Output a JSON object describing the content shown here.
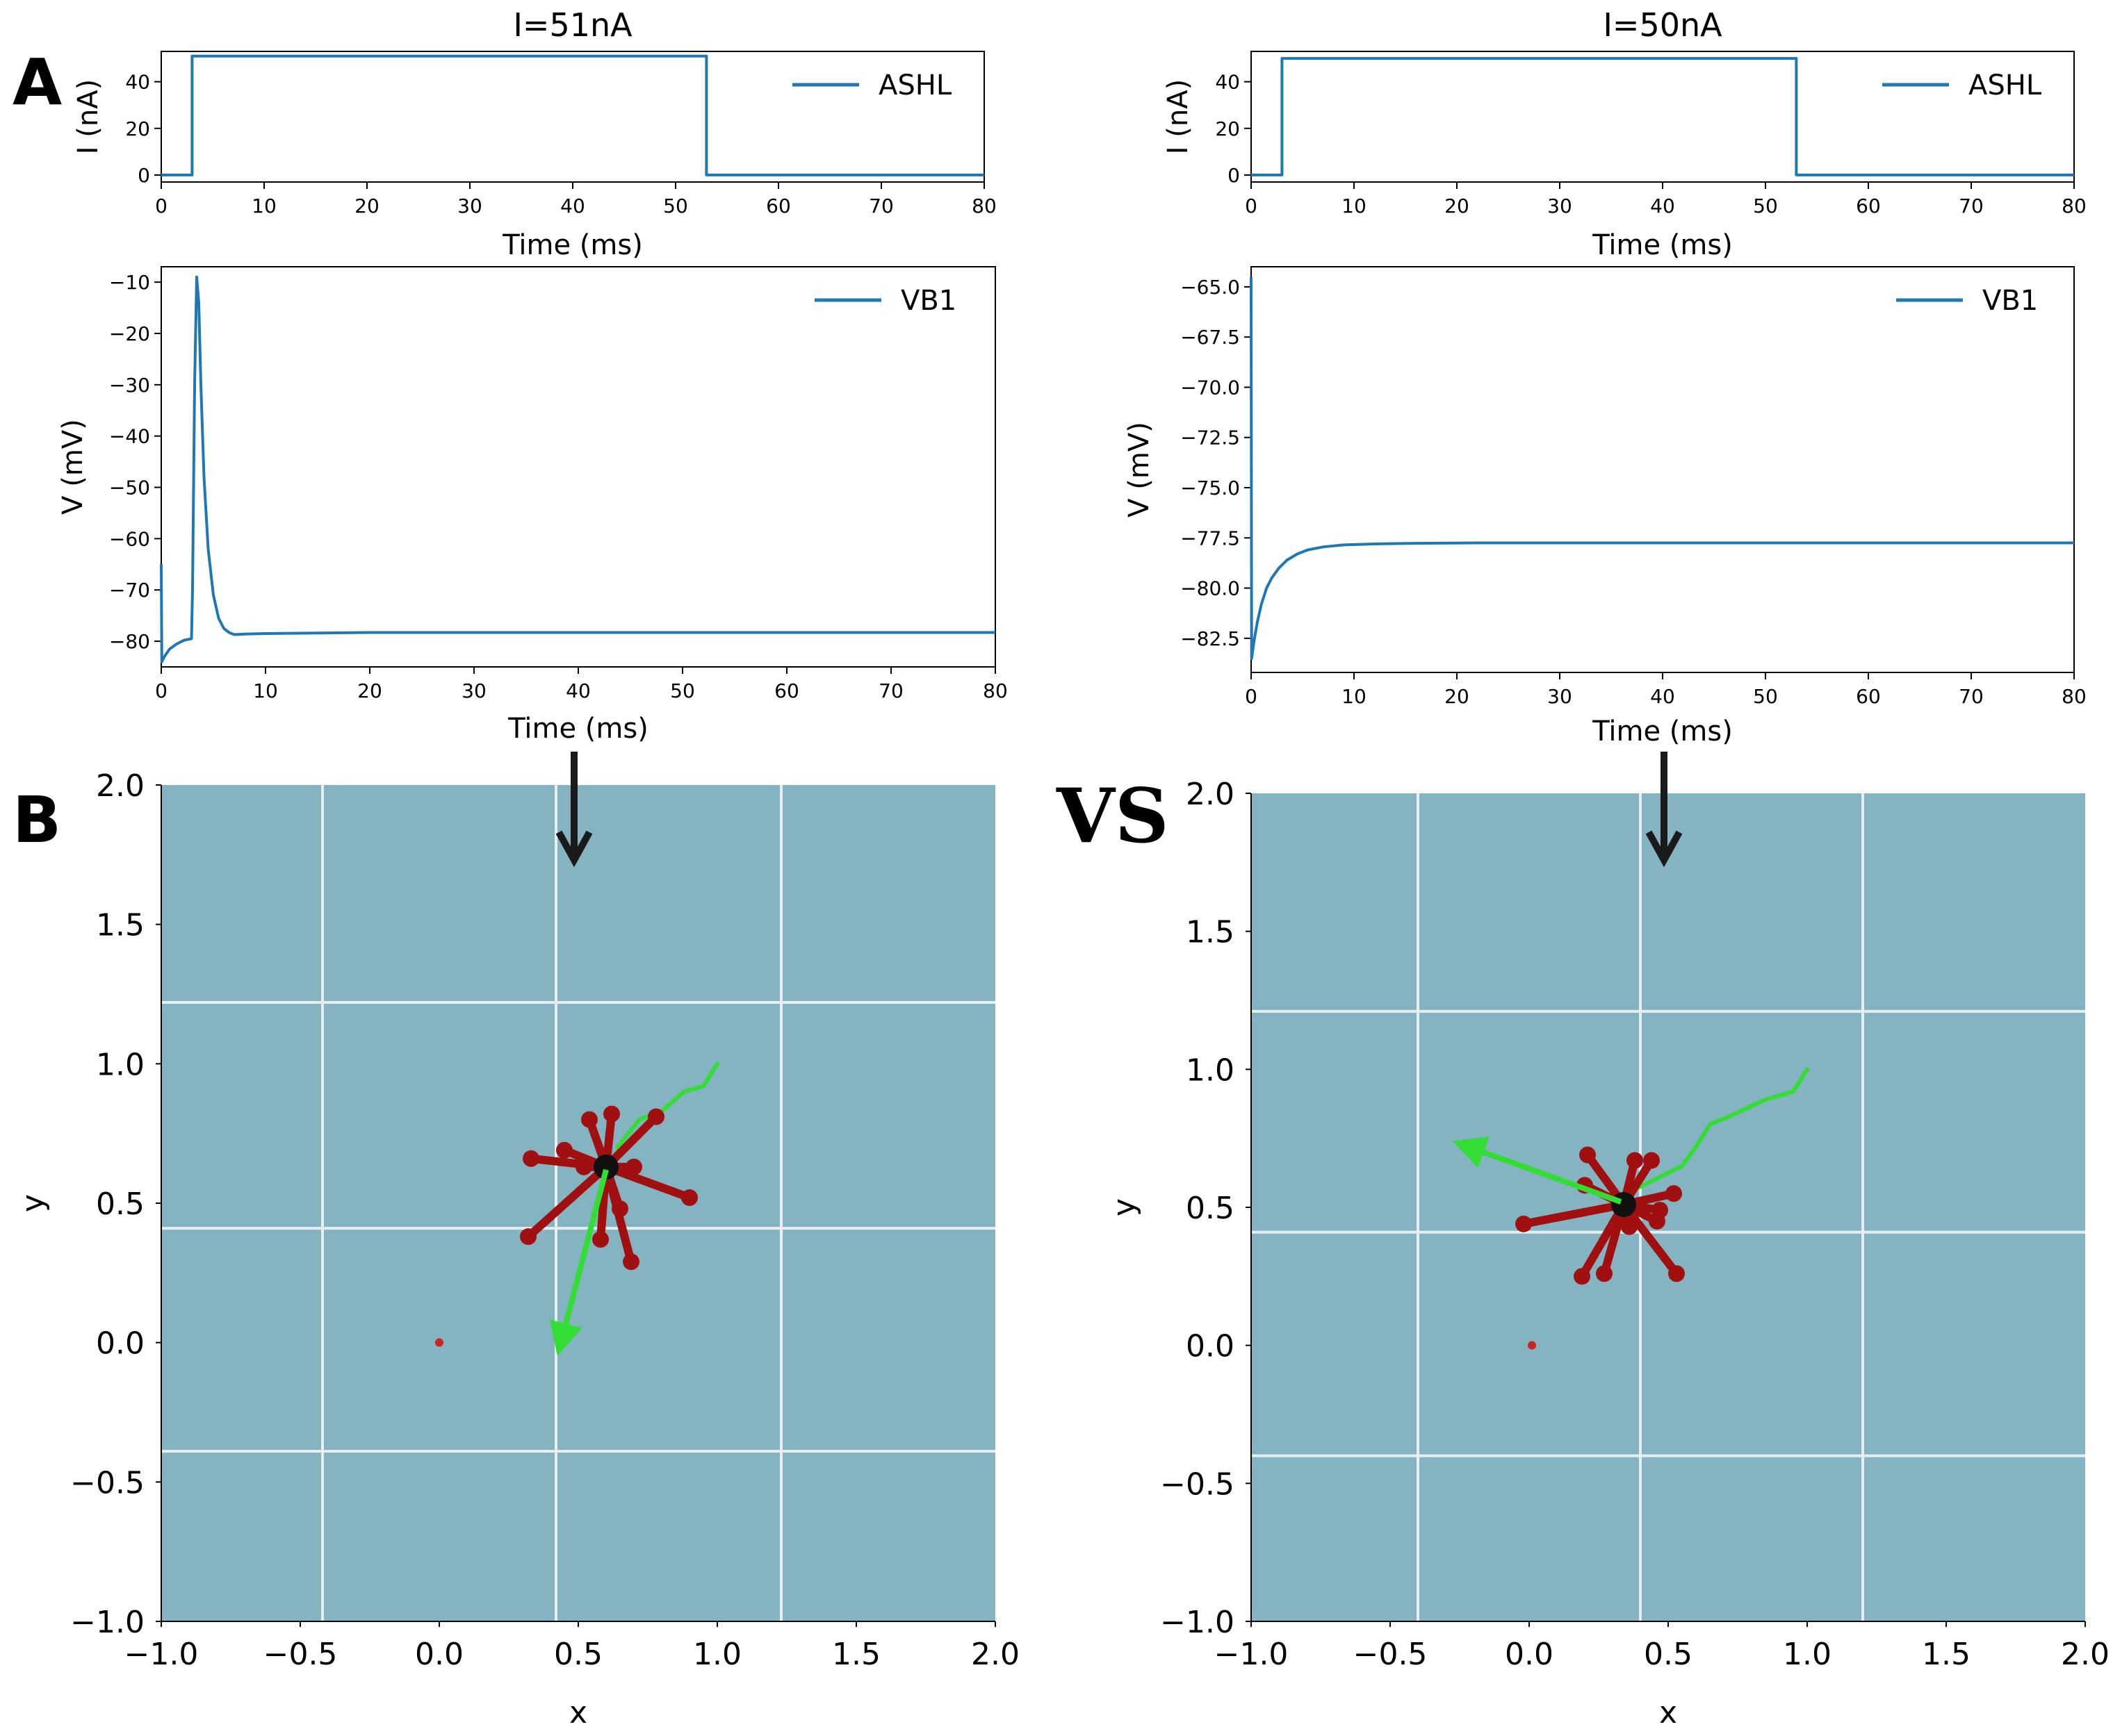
{
  "panel_labels": {
    "a": "A",
    "b": "B",
    "vs": "VS"
  },
  "colors": {
    "line": "#1f77b4",
    "arena_bg": "#84b3c2",
    "grid": "#e8eef0",
    "worm_body": "#a01010",
    "worm_center": "#111111",
    "trail": "#33dd33",
    "arrow": "#1a1a1a",
    "target": "#cc2222"
  },
  "chart_data": [
    {
      "id": "current-left",
      "type": "line",
      "title": "I=51nA",
      "xlabel": "Time (ms)",
      "ylabel": "I (nA)",
      "xlim": [
        0,
        80
      ],
      "ylim": [
        -3,
        53
      ],
      "xticks": [
        0,
        10,
        20,
        30,
        40,
        50,
        60,
        70,
        80
      ],
      "yticks": [
        0,
        20,
        40
      ],
      "legend": "ASHL",
      "legend_position": "top-right",
      "series": [
        {
          "name": "ASHL",
          "x": [
            0,
            3,
            3,
            53,
            53,
            80
          ],
          "y": [
            0,
            0,
            51,
            51,
            0,
            0
          ]
        }
      ]
    },
    {
      "id": "voltage-left",
      "type": "line",
      "title": "",
      "xlabel": "Time (ms)",
      "ylabel": "V (mV)",
      "xlim": [
        0,
        80
      ],
      "ylim": [
        -85,
        -7
      ],
      "xticks": [
        0,
        10,
        20,
        30,
        40,
        50,
        60,
        70,
        80
      ],
      "yticks": [
        -80,
        -70,
        -60,
        -50,
        -40,
        -30,
        -20,
        -10
      ],
      "legend": "VB1",
      "legend_position": "top-right",
      "series": [
        {
          "name": "VB1",
          "x": [
            0,
            0.05,
            0.3,
            0.8,
            1.5,
            2.2,
            2.9,
            3.0,
            3.2,
            3.4,
            3.6,
            3.8,
            4.1,
            4.5,
            5.0,
            5.5,
            6.0,
            6.5,
            7.0,
            8.0,
            10.0,
            20.0,
            40.0,
            60.0,
            80.0
          ],
          "y": [
            -65,
            -84,
            -83,
            -81.5,
            -80.5,
            -79.8,
            -79.5,
            -70,
            -30,
            -9,
            -14,
            -30,
            -48,
            -62,
            -71,
            -75.5,
            -77.5,
            -78.3,
            -78.7,
            -78.6,
            -78.5,
            -78.3,
            -78.3,
            -78.3,
            -78.3
          ]
        }
      ]
    },
    {
      "id": "trajectory-left",
      "type": "scatter",
      "title": "",
      "xlabel": "x",
      "ylabel": "y",
      "xlim": [
        -1.0,
        2.0
      ],
      "ylim": [
        -1.0,
        2.0
      ],
      "xticks": [
        "−1.0",
        "−0.5",
        "0.0",
        "0.5",
        "1.0",
        "1.5",
        "2.0"
      ],
      "yticks": [
        "−1.0",
        "−0.5",
        "0.0",
        "0.5",
        "1.0",
        "1.5",
        "2.0"
      ],
      "gridlines_x": [
        -0.42,
        0.42,
        1.23
      ],
      "gridlines_y": [
        -0.39,
        0.41,
        1.22
      ],
      "trail": {
        "x": [
          1.0,
          0.95,
          0.88,
          0.8,
          0.72,
          0.64
        ],
        "y": [
          1.0,
          0.92,
          0.9,
          0.83,
          0.8,
          0.7
        ]
      },
      "heading": {
        "from": [
          0.6,
          0.62
        ],
        "to": [
          0.44,
          0.01
        ]
      },
      "worm_center": [
        0.6,
        0.63
      ],
      "limbs": [
        [
          0.54,
          0.8
        ],
        [
          0.62,
          0.82
        ],
        [
          0.45,
          0.69
        ],
        [
          0.33,
          0.66
        ],
        [
          0.78,
          0.81
        ],
        [
          0.7,
          0.63
        ],
        [
          0.9,
          0.52
        ],
        [
          0.65,
          0.48
        ],
        [
          0.32,
          0.38
        ],
        [
          0.58,
          0.37
        ],
        [
          0.69,
          0.29
        ],
        [
          0.52,
          0.63
        ]
      ],
      "target": [
        0.0,
        0.0
      ],
      "arrow_label": "down"
    },
    {
      "id": "current-right",
      "type": "line",
      "title": "I=50nA",
      "xlabel": "Time (ms)",
      "ylabel": "I (nA)",
      "xlim": [
        0,
        80
      ],
      "ylim": [
        -3,
        53
      ],
      "xticks": [
        0,
        10,
        20,
        30,
        40,
        50,
        60,
        70,
        80
      ],
      "yticks": [
        0,
        20,
        40
      ],
      "legend": "ASHL",
      "legend_position": "top-right",
      "series": [
        {
          "name": "ASHL",
          "x": [
            0,
            3,
            3,
            53,
            53,
            80
          ],
          "y": [
            0,
            0,
            50,
            50,
            0,
            0
          ]
        }
      ]
    },
    {
      "id": "voltage-right",
      "type": "line",
      "title": "",
      "xlabel": "Time (ms)",
      "ylabel": "V (mV)",
      "xlim": [
        0,
        80
      ],
      "ylim": [
        -84.2,
        -64
      ],
      "xticks": [
        0,
        10,
        20,
        30,
        40,
        50,
        60,
        70,
        80
      ],
      "yticks": [
        "−82.5",
        "−80.0",
        "−77.5",
        "−75.0",
        "−72.5",
        "−70.0",
        "−67.5",
        "−65.0"
      ],
      "ytick_values": [
        -82.5,
        -80.0,
        -77.5,
        -75.0,
        -72.5,
        -70.0,
        -67.5,
        -65.0
      ],
      "legend": "VB1",
      "legend_position": "top-right",
      "series": [
        {
          "name": "VB1",
          "x": [
            0,
            0.05,
            0.3,
            0.6,
            1.0,
            1.5,
            2.0,
            2.7,
            3.5,
            4.5,
            5.5,
            7.0,
            9.0,
            12.0,
            16.0,
            22.0,
            30.0,
            45.0,
            60.0,
            80.0
          ],
          "y": [
            -64.5,
            -83.5,
            -82.6,
            -81.7,
            -80.8,
            -80.0,
            -79.5,
            -79.0,
            -78.6,
            -78.3,
            -78.1,
            -77.95,
            -77.85,
            -77.8,
            -77.77,
            -77.75,
            -77.75,
            -77.75,
            -77.75,
            -77.75
          ]
        }
      ]
    },
    {
      "id": "trajectory-right",
      "type": "scatter",
      "title": "",
      "xlabel": "x",
      "ylabel": "y",
      "xlim": [
        -1.0,
        2.0
      ],
      "ylim": [
        -1.0,
        2.0
      ],
      "xticks": [
        "−1.0",
        "−0.5",
        "0.0",
        "0.5",
        "1.0",
        "1.5",
        "2.0"
      ],
      "yticks": [
        "−1.0",
        "−0.5",
        "0.0",
        "0.5",
        "1.0",
        "1.5",
        "2.0"
      ],
      "gridlines_x": [
        -0.4,
        0.4,
        1.2
      ],
      "gridlines_y": [
        -0.4,
        0.41,
        1.21
      ],
      "trail": {
        "x": [
          1.0,
          0.95,
          0.85,
          0.72,
          0.65,
          0.6,
          0.55,
          0.45,
          0.35
        ],
        "y": [
          1.0,
          0.92,
          0.89,
          0.83,
          0.8,
          0.72,
          0.65,
          0.6,
          0.55
        ]
      },
      "heading": {
        "from": [
          0.33,
          0.52
        ],
        "to": [
          -0.22,
          0.72
        ]
      },
      "worm_center": [
        0.34,
        0.51
      ],
      "limbs": [
        [
          0.21,
          0.69
        ],
        [
          0.38,
          0.67
        ],
        [
          0.44,
          0.67
        ],
        [
          0.2,
          0.58
        ],
        [
          0.52,
          0.55
        ],
        [
          0.47,
          0.49
        ],
        [
          -0.02,
          0.44
        ],
        [
          0.46,
          0.45
        ],
        [
          0.19,
          0.25
        ],
        [
          0.27,
          0.26
        ],
        [
          0.53,
          0.26
        ],
        [
          0.36,
          0.43
        ]
      ],
      "target": [
        0.01,
        0.0
      ],
      "arrow_label": "down"
    }
  ]
}
